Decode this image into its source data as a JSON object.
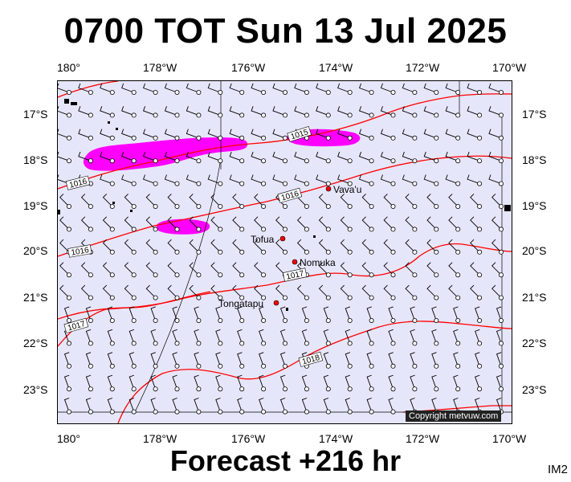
{
  "title": "0700 TOT Sun 13 Jul 2025",
  "footer": "Forecast +216 hr",
  "code": "IM2",
  "copyright": "Copyright metvuw.com",
  "axis": {
    "lon_labels": [
      "180°",
      "178°W",
      "176°W",
      "174°W",
      "172°W",
      "170°W"
    ],
    "lat_labels": [
      "17°S",
      "18°S",
      "19°S",
      "20°S",
      "21°S",
      "22°S",
      "23°S"
    ]
  },
  "isobars": [
    "1015",
    "1016",
    "1016",
    "1016",
    "1017",
    "1017",
    "1018"
  ],
  "places": [
    {
      "name": "Vava'u"
    },
    {
      "name": "Tofua"
    },
    {
      "name": "Nomuka"
    },
    {
      "name": "Tongatapu"
    }
  ],
  "colors": {
    "isobar": "#ff0000",
    "rain": "#ff00ff",
    "ocean": "#e6e6fa",
    "place": "#ff0000"
  }
}
